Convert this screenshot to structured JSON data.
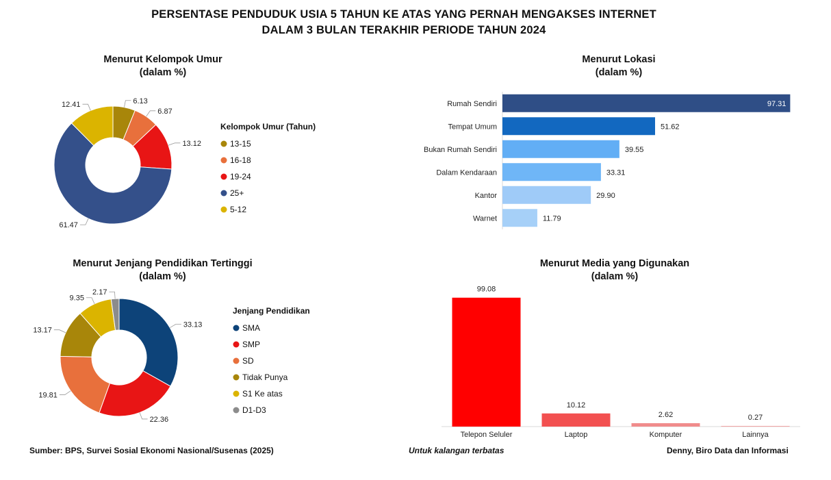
{
  "title": {
    "line1": "PERSENTASE PENDUDUK USIA 5 TAHUN KE ATAS YANG PERNAH MENGAKSES INTERNET",
    "line2": "DALAM 3 BULAN TERAKHIR PERIODE TAHUN 2024"
  },
  "footer": {
    "source": "Sumber: BPS, Survei Sosial Ekonomi Nasional/Susenas (2025)",
    "note": "Untuk kalangan terbatas",
    "author": "Denny, Biro Data dan Informasi"
  },
  "chart_data": [
    {
      "id": "umur",
      "type": "pie",
      "variant": "donut",
      "title": "Menurut Kelompok Umur",
      "subtitle": "(dalam %)",
      "legend_title": "Kelompok Umur (Tahun)",
      "legend_position": "right",
      "slices": [
        {
          "label": "13-15",
          "value": 6.13,
          "value_label": "6.13",
          "color": "#A8860A"
        },
        {
          "label": "16-18",
          "value": 6.87,
          "value_label": "6.87",
          "color": "#E8703C"
        },
        {
          "label": "19-24",
          "value": 13.12,
          "value_label": "13.12",
          "color": "#E81515"
        },
        {
          "label": "25+",
          "value": 61.47,
          "value_label": "61.47",
          "color": "#34508A"
        },
        {
          "label": "5-12",
          "value": 12.41,
          "value_label": "12.41",
          "color": "#DBB400"
        }
      ]
    },
    {
      "id": "lokasi",
      "type": "bar",
      "orientation": "horizontal",
      "title": "Menurut Lokasi",
      "subtitle": "(dalam %)",
      "xlim": [
        0,
        100
      ],
      "grid": false,
      "categories": [
        "Rumah Sendiri",
        "Tempat Umum",
        "Bukan Rumah Sendiri",
        "Dalam Kendaraan",
        "Kantor",
        "Warnet"
      ],
      "values": [
        97.31,
        51.62,
        39.55,
        33.31,
        29.9,
        11.79
      ],
      "value_labels": [
        "97.31",
        "51.62",
        "39.55",
        "33.31",
        "29.90",
        "11.79"
      ],
      "colors": [
        "#2F4E86",
        "#1268C0",
        "#62AEF5",
        "#6FB6F7",
        "#9FCBF8",
        "#A6D0F8"
      ]
    },
    {
      "id": "pendidikan",
      "type": "pie",
      "variant": "donut",
      "title": "Menurut Jenjang Pendidikan Tertinggi",
      "subtitle": "(dalam %)",
      "legend_title": "Jenjang Pendidikan",
      "legend_position": "right",
      "slices": [
        {
          "label": "SMA",
          "value": 33.13,
          "value_label": "33.13",
          "color": "#0D4379"
        },
        {
          "label": "SMP",
          "value": 22.36,
          "value_label": "22.36",
          "color": "#E81515"
        },
        {
          "label": "SD",
          "value": 19.81,
          "value_label": "19.81",
          "color": "#E8703C"
        },
        {
          "label": "Tidak Punya",
          "value": 13.17,
          "value_label": "13.17",
          "color": "#A8860A"
        },
        {
          "label": "S1 Ke atas",
          "value": 9.35,
          "value_label": "9.35",
          "color": "#DBB400"
        },
        {
          "label": "D1-D3",
          "value": 2.17,
          "value_label": "2.17",
          "color": "#8C8C8C"
        }
      ]
    },
    {
      "id": "media",
      "type": "bar",
      "orientation": "vertical",
      "title": "Menurut Media yang Digunakan",
      "subtitle": "(dalam %)",
      "ylim": [
        0,
        100
      ],
      "grid": false,
      "categories": [
        "Telepon Seluler",
        "Laptop",
        "Komputer",
        "Lainnya"
      ],
      "values": [
        99.08,
        10.12,
        2.62,
        0.27
      ],
      "value_labels": [
        "99.08",
        "10.12",
        "2.62",
        "0.27"
      ],
      "colors": [
        "#FF0000",
        "#F25050",
        "#F08C8C",
        "#F2A6A6"
      ]
    }
  ]
}
